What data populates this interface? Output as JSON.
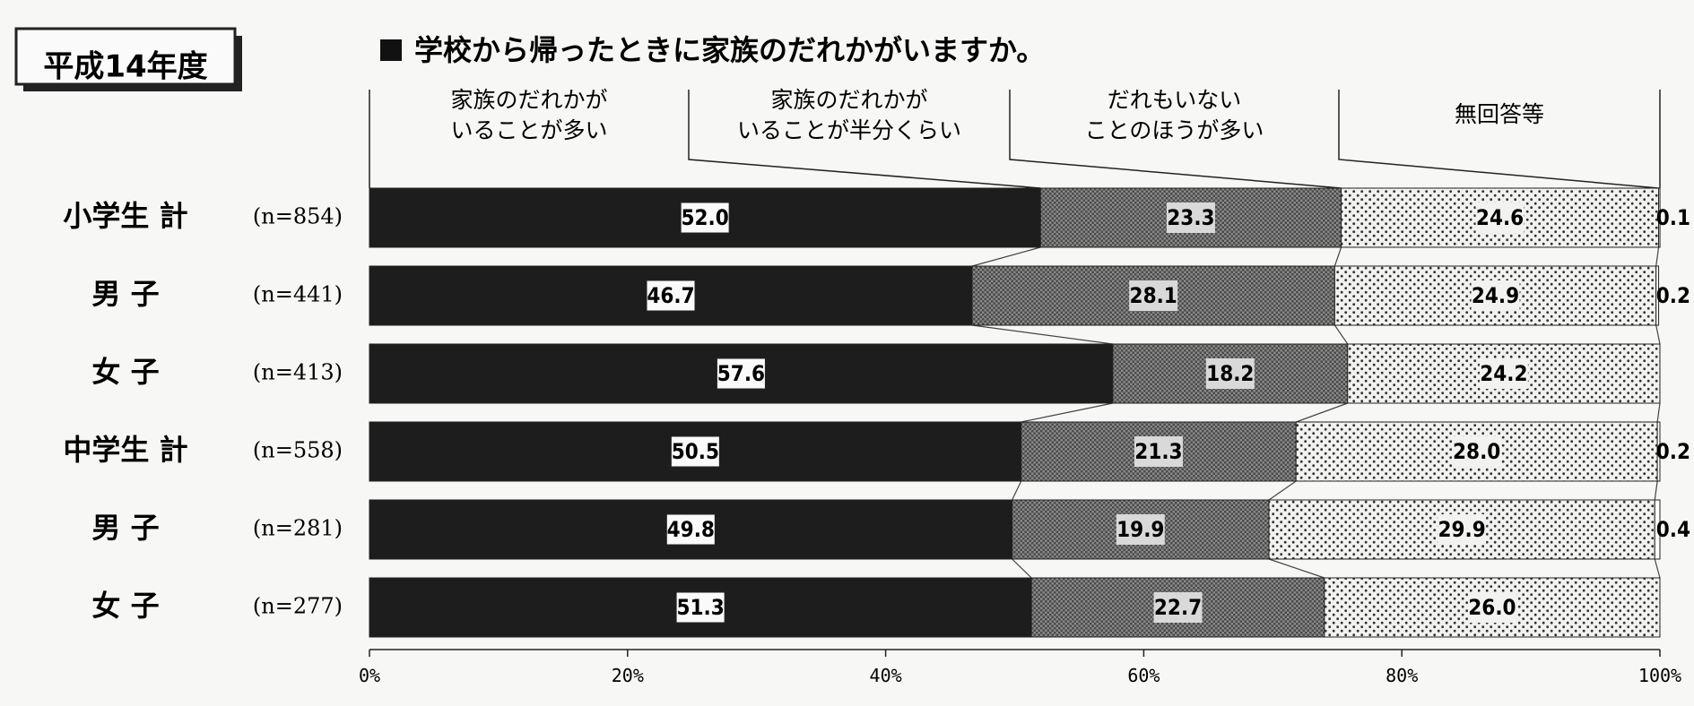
{
  "year_badge": "平成14年度",
  "chart_data": {
    "type": "bar",
    "orientation": "horizontal",
    "stacked": true,
    "title": "学校から帰ったときに家族のだれかがいますか。",
    "categories": [
      {
        "label": "小学生 計",
        "n": "(n=854)"
      },
      {
        "label": "男 子",
        "n": "(n=441)"
      },
      {
        "label": "女 子",
        "n": "(n=413)"
      },
      {
        "label": "中学生 計",
        "n": "(n=558)"
      },
      {
        "label": "男 子",
        "n": "(n=281)"
      },
      {
        "label": "女 子",
        "n": "(n=277)"
      }
    ],
    "series": [
      {
        "name": "家族のだれかがいることが多い",
        "name_lines": [
          "家族のだれかが",
          "いることが多い"
        ],
        "values": [
          52.0,
          46.7,
          57.6,
          50.5,
          49.8,
          51.3
        ],
        "labels": [
          "52.0",
          "46.7",
          "57.6",
          "50.5",
          "49.8",
          "51.3"
        ],
        "pattern": "solid"
      },
      {
        "name": "家族のだれかがいることが半分くらい",
        "name_lines": [
          "家族のだれかが",
          "いることが半分くらい"
        ],
        "values": [
          23.3,
          28.1,
          18.2,
          21.3,
          19.9,
          22.7
        ],
        "labels": [
          "23.3",
          "28.1",
          "18.2",
          "21.3",
          "19.9",
          "22.7"
        ],
        "pattern": "dense"
      },
      {
        "name": "だれもいないことのほうが多い",
        "name_lines": [
          "だれもいない",
          "ことのほうが多い"
        ],
        "values": [
          24.6,
          24.9,
          24.2,
          28.0,
          29.9,
          26.0
        ],
        "labels": [
          "24.6",
          "24.9",
          "24.2",
          "28.0",
          "29.9",
          "26.0"
        ],
        "pattern": "dots"
      },
      {
        "name": "無回答等",
        "name_lines": [
          "無回答等"
        ],
        "values": [
          0.1,
          0.2,
          0.0,
          0.2,
          0.4,
          0.0
        ],
        "labels": [
          "0.1",
          "0.2",
          "",
          "0.2",
          "0.4",
          ""
        ],
        "pattern": "white"
      }
    ],
    "xaxis": {
      "ticks": [
        "0%",
        "20%",
        "40%",
        "60%",
        "80%",
        "100%"
      ],
      "range": [
        0,
        100
      ]
    },
    "grid": false,
    "legend": "top"
  },
  "colors": {
    "bar_dark": "#1d1d1d",
    "background": "#f7f7f5"
  }
}
